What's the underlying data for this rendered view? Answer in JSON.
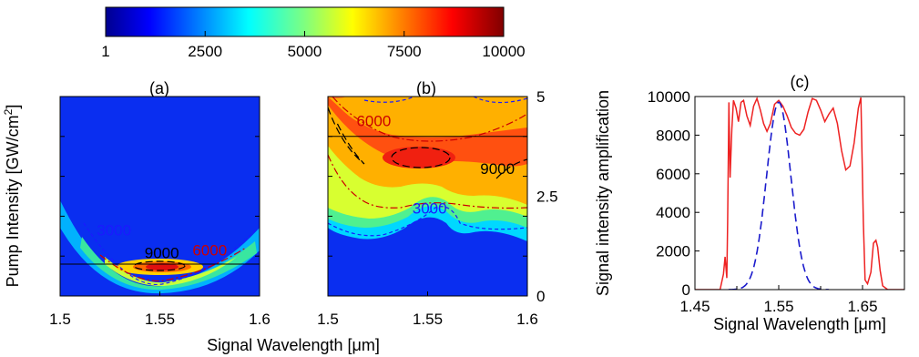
{
  "colorbar": {
    "tick_labels": [
      "1",
      "2500",
      "5000",
      "7500",
      "10000"
    ],
    "ticks": [
      1,
      2500,
      5000,
      7500,
      10000
    ],
    "range": [
      1,
      10000
    ],
    "colormap": "jet"
  },
  "chart_data": [
    {
      "type": "heatmap",
      "panel_label": "(a)",
      "xlabel": "Signal Wavelength [μm]",
      "ylabel_main": "Pump Intensity [GW/cm",
      "ylabel_sup": "2",
      "ylabel_end": "]",
      "xlim": [
        1.5,
        1.6
      ],
      "ylim": [
        0,
        5
      ],
      "x_tick_values": [
        1.5,
        1.55,
        1.6
      ],
      "x_tick_labels": [
        "1.5",
        "1.55",
        "1.6"
      ],
      "horizontal_line_y": 0.8,
      "contour_levels": [
        3000,
        6000,
        9000
      ],
      "contour_labels": [
        {
          "text": "3000",
          "x": 1.527,
          "y": 1.65,
          "color": "#1a1aff"
        },
        {
          "text": "9000",
          "x": 1.551,
          "y": 1.08,
          "color": "#000000"
        },
        {
          "text": "6000",
          "x": 1.575,
          "y": 1.15,
          "color": "#cc0000"
        }
      ]
    },
    {
      "type": "heatmap",
      "panel_label": "(b)",
      "xlim": [
        1.5,
        1.6
      ],
      "ylim": [
        0,
        5
      ],
      "x_tick_values": [
        1.5,
        1.55,
        1.6
      ],
      "x_tick_labels": [
        "1.5",
        "1.55",
        "1.6"
      ],
      "y_tick_values": [
        0,
        2.5,
        5
      ],
      "y_tick_labels": [
        "0",
        "2.5",
        "5"
      ],
      "horizontal_line_y": 4.0,
      "contour_levels": [
        3000,
        6000,
        9000
      ],
      "contour_labels": [
        {
          "text": "6000",
          "x": 1.523,
          "y": 4.4,
          "color": "#cc0000"
        },
        {
          "text": "9000",
          "x": 1.585,
          "y": 3.2,
          "color": "#000000"
        },
        {
          "text": "3000",
          "x": 1.551,
          "y": 2.2,
          "color": "#1a1aff"
        }
      ]
    },
    {
      "type": "line",
      "panel_label": "(c)",
      "xlabel": "Signal Wavelength [μm]",
      "ylabel": "Signal intensity amplification",
      "xlim": [
        1.45,
        1.7
      ],
      "ylim": [
        0,
        10000
      ],
      "x_tick_values": [
        1.45,
        1.55,
        1.65
      ],
      "x_tick_labels": [
        "1.45",
        "1.55",
        "1.65"
      ],
      "y_tick_values": [
        0,
        2000,
        4000,
        6000,
        8000,
        10000
      ],
      "y_tick_labels": [
        "0",
        "2000",
        "4000",
        "6000",
        "8000",
        "10000"
      ],
      "series": [
        {
          "style": "solid",
          "color": "#ee2222",
          "x": [
            1.45,
            1.48,
            1.484,
            1.486,
            1.488,
            1.489,
            1.4905,
            1.492,
            1.494,
            1.496,
            1.499,
            1.502,
            1.505,
            1.508,
            1.512,
            1.516,
            1.52,
            1.524,
            1.528,
            1.532,
            1.536,
            1.54,
            1.545,
            1.55,
            1.555,
            1.56,
            1.565,
            1.57,
            1.575,
            1.58,
            1.585,
            1.59,
            1.595,
            1.6,
            1.605,
            1.61,
            1.615,
            1.62,
            1.625,
            1.63,
            1.635,
            1.64,
            1.645,
            1.648,
            1.651,
            1.653,
            1.656,
            1.66,
            1.663,
            1.666,
            1.668,
            1.671,
            1.674,
            1.68,
            1.7
          ],
          "y": [
            0,
            0,
            800,
            1700,
            600,
            3500,
            9700,
            5800,
            8300,
            9800,
            9400,
            8700,
            9700,
            9800,
            9000,
            8500,
            9500,
            9900,
            9300,
            8600,
            8200,
            8600,
            9600,
            9800,
            9500,
            9000,
            8400,
            8100,
            8000,
            8300,
            9200,
            9900,
            9800,
            9300,
            8700,
            9100,
            9400,
            8600,
            7200,
            6200,
            6400,
            7600,
            9400,
            9950,
            3500,
            500,
            300,
            900,
            2400,
            2550,
            2200,
            1000,
            200,
            0,
            0
          ]
        },
        {
          "style": "dashed",
          "color": "#1a1acc",
          "gauss_center": 1.55,
          "gauss_peak": 9700,
          "gauss_sigma": 0.0145
        }
      ]
    }
  ]
}
